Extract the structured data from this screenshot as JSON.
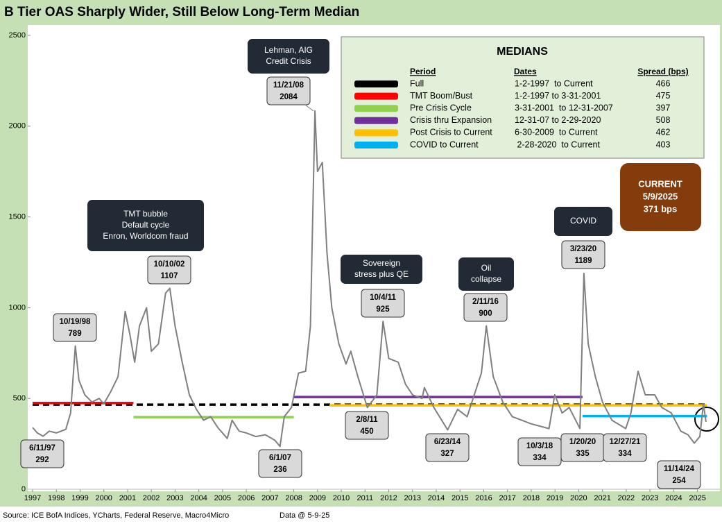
{
  "chart_data": {
    "type": "line",
    "title": "B Tier OAS Sharply Wider, Still Below Long-Term Median",
    "source": "Source: ICE BofA Indices, YCharts, Federal Reserve, Macro4Micro",
    "data_note": "Data @ 5-9-25",
    "xlim": [
      1997,
      2025.45
    ],
    "xticks": [
      1997,
      1998,
      1999,
      2000,
      2001,
      2002,
      2003,
      2004,
      2005,
      2006,
      2007,
      2008,
      2009,
      2010,
      2011,
      2012,
      2013,
      2014,
      2015,
      2016,
      2017,
      2018,
      2019,
      2020,
      2021,
      2022,
      2023,
      2024,
      2025
    ],
    "ylim": [
      0,
      2500
    ],
    "yticks": [
      0,
      500,
      1000,
      1500,
      2000,
      2500
    ],
    "series": [
      {
        "color": "#7f7f7f",
        "x": [
          1997.0,
          1997.2,
          1997.44,
          1997.7,
          1998.0,
          1998.4,
          1998.6,
          1998.8,
          1998.95,
          1999.2,
          1999.5,
          1999.8,
          2000.0,
          2000.3,
          2000.6,
          2000.9,
          2001.1,
          2001.3,
          2001.5,
          2001.8,
          2002.0,
          2002.3,
          2002.6,
          2002.78,
          2003.0,
          2003.3,
          2003.6,
          2003.9,
          2004.2,
          2004.5,
          2004.8,
          2005.2,
          2005.4,
          2005.7,
          2006.0,
          2006.4,
          2006.8,
          2007.2,
          2007.42,
          2007.6,
          2007.9,
          2008.2,
          2008.5,
          2008.7,
          2008.89,
          2009.0,
          2009.2,
          2009.4,
          2009.6,
          2009.9,
          2010.2,
          2010.4,
          2010.7,
          2011.1,
          2011.5,
          2011.76,
          2012.0,
          2012.4,
          2012.7,
          2013.0,
          2013.4,
          2013.5,
          2013.9,
          2014.48,
          2014.9,
          2015.3,
          2015.6,
          2015.9,
          2016.11,
          2016.4,
          2016.8,
          2017.2,
          2017.6,
          2018.0,
          2018.75,
          2018.99,
          2019.3,
          2019.6,
          2020.05,
          2020.22,
          2020.4,
          2020.7,
          2021.0,
          2021.4,
          2021.98,
          2022.2,
          2022.5,
          2022.8,
          2023.2,
          2023.5,
          2023.9,
          2024.3,
          2024.6,
          2024.87,
          2025.1,
          2025.25,
          2025.36
        ],
        "values": [
          340,
          310,
          292,
          320,
          310,
          330,
          420,
          789,
          600,
          520,
          480,
          500,
          470,
          540,
          620,
          980,
          850,
          700,
          900,
          1000,
          760,
          800,
          1080,
          1107,
          900,
          700,
          520,
          440,
          380,
          400,
          340,
          280,
          380,
          320,
          310,
          290,
          300,
          270,
          236,
          400,
          450,
          640,
          650,
          900,
          2084,
          1750,
          1800,
          1300,
          1000,
          800,
          690,
          760,
          620,
          450,
          520,
          925,
          720,
          700,
          580,
          520,
          500,
          560,
          450,
          327,
          440,
          400,
          520,
          640,
          900,
          620,
          480,
          400,
          380,
          360,
          334,
          520,
          420,
          450,
          335,
          1189,
          800,
          620,
          480,
          380,
          334,
          420,
          650,
          520,
          520,
          450,
          420,
          320,
          300,
          254,
          290,
          470,
          371
        ]
      }
    ],
    "annotations": [
      {
        "date": "6/11/97",
        "value": 292
      },
      {
        "date": "10/19/98",
        "value": 789
      },
      {
        "date": "10/10/02",
        "value": 1107
      },
      {
        "date": "11/21/08",
        "value": 2084
      },
      {
        "date": "6/1/07",
        "value": 236
      },
      {
        "date": "2/8/11",
        "value": 450
      },
      {
        "date": "10/4/11",
        "value": 925
      },
      {
        "date": "6/23/14",
        "value": 327
      },
      {
        "date": "2/11/16",
        "value": 900
      },
      {
        "date": "10/3/18",
        "value": 334
      },
      {
        "date": "1/20/20",
        "value": 335
      },
      {
        "date": "3/23/20",
        "value": 1189
      },
      {
        "date": "12/27/21",
        "value": 334
      },
      {
        "date": "11/14/24",
        "value": 254
      }
    ],
    "events": [
      [
        "TMT bubble",
        "Default cycle",
        "Enron, Worldcom fraud"
      ],
      [
        "Lehman, AIG",
        "Credit Crisis"
      ],
      [
        "Sovereign",
        "stress plus QE"
      ],
      [
        "Oil",
        "collapse"
      ],
      [
        "COVID"
      ]
    ],
    "current": [
      "CURRENT",
      "5/9/2025",
      "371 bps"
    ],
    "medians": {
      "title": "MEDIANS",
      "headers": [
        "Period",
        "Dates",
        "Spread (bps)"
      ],
      "rows": [
        {
          "color": "#000000",
          "period": "Full",
          "dates": "1-2-1997  to Current",
          "spread": 466,
          "xspan": [
            1997,
            2025.4
          ],
          "dashed": true
        },
        {
          "color": "#ff0000",
          "period": "TMT Boom/Bust",
          "dates": "1-2-1997 to 3-31-2001",
          "spread": 475,
          "xspan": [
            1997,
            2001.25
          ]
        },
        {
          "color": "#92d050",
          "period": "Pre Crisis Cycle",
          "dates": "3-31-2001  to 12-31-2007",
          "spread": 397,
          "xspan": [
            2001.25,
            2008.0
          ]
        },
        {
          "color": "#7030a0",
          "period": "Crisis thru Expansion",
          "dates": "12-31-07 to 2-29-2020",
          "spread": 508,
          "xspan": [
            2008.0,
            2020.16
          ]
        },
        {
          "color": "#ffc000",
          "period": "Post Crisis to Current",
          "dates": "6-30-2009  to Current",
          "spread": 462,
          "xspan": [
            2009.5,
            2025.4
          ]
        },
        {
          "color": "#00b0f0",
          "period": "COVID to Current",
          "dates": " 2-28-2020  to Current",
          "spread": 403,
          "xspan": [
            2020.16,
            2025.4
          ]
        }
      ]
    }
  }
}
